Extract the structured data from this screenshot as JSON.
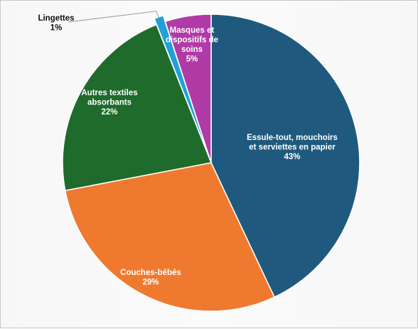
{
  "chart_data": {
    "type": "pie",
    "title": "",
    "slices": [
      {
        "name": "Essule-tout, mouchoirs et serviettes en papier",
        "value": 43,
        "label": "43%",
        "color": "#1f5a7e"
      },
      {
        "name": "Couches-bébés",
        "value": 29,
        "label": "29%",
        "color": "#ef7a2f"
      },
      {
        "name": "Autres textiles absorbants",
        "value": 22,
        "label": "22%",
        "color": "#1e6b2c"
      },
      {
        "name": "Lingettes",
        "value": 1,
        "label": "1%",
        "color": "#20a0d8"
      },
      {
        "name": "Masques et dispositifs de soins",
        "value": 5,
        "label": "5%",
        "color": "#b03aa6"
      }
    ],
    "legend": "none",
    "data_labels": "category name and percentage"
  }
}
